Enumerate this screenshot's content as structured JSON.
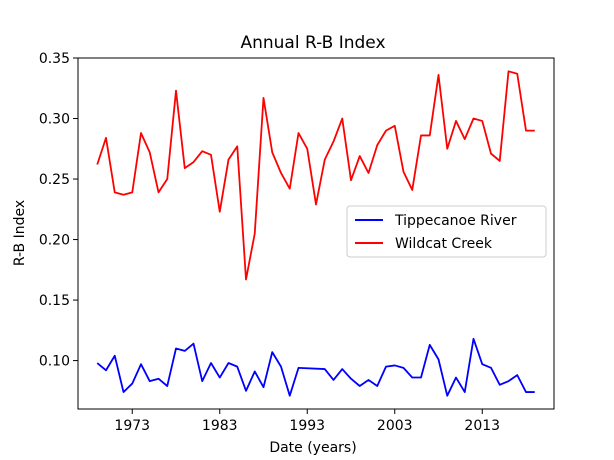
{
  "chart_data": {
    "type": "line",
    "title": "Annual R-B Index",
    "xlabel": "Date (years)",
    "ylabel": "R-B Index",
    "xlim": [
      1966.8,
      2021.2
    ],
    "ylim": [
      0.06,
      0.35
    ],
    "xticks": [
      1973,
      1983,
      1993,
      2003,
      2013
    ],
    "yticks": [
      0.1,
      0.15,
      0.2,
      0.25,
      0.3,
      0.35
    ],
    "ytick_labels": [
      "0.10",
      "0.15",
      "0.20",
      "0.25",
      "0.30",
      "0.35"
    ],
    "grid": false,
    "legend_position": "center-right",
    "series": [
      {
        "name": "Tippecanoe River",
        "color": "#0000ff",
        "x": [
          1969,
          1970,
          1971,
          1972,
          1973,
          1974,
          1975,
          1976,
          1977,
          1978,
          1979,
          1980,
          1981,
          1982,
          1983,
          1984,
          1985,
          1986,
          1987,
          1988,
          1989,
          1990,
          1991,
          1992,
          1995,
          1996,
          1997,
          1998,
          1999,
          2000,
          2001,
          2002,
          2003,
          2004,
          2005,
          2006,
          2007,
          2008,
          2009,
          2010,
          2011,
          2012,
          2013,
          2014,
          2015,
          2016,
          2017,
          2018,
          2019
        ],
        "values": [
          0.098,
          0.092,
          0.104,
          0.074,
          0.081,
          0.097,
          0.083,
          0.085,
          0.079,
          0.11,
          0.108,
          0.114,
          0.083,
          0.098,
          0.086,
          0.098,
          0.095,
          0.075,
          0.091,
          0.078,
          0.107,
          0.095,
          0.071,
          0.094,
          0.093,
          0.084,
          0.093,
          0.085,
          0.079,
          0.084,
          0.079,
          0.095,
          0.096,
          0.094,
          0.086,
          0.086,
          0.113,
          0.101,
          0.071,
          0.086,
          0.074,
          0.118,
          0.097,
          0.094,
          0.08,
          0.083,
          0.088,
          0.074,
          0.074
        ]
      },
      {
        "name": "Wildcat Creek",
        "color": "#ff0000",
        "x": [
          1969,
          1970,
          1971,
          1972,
          1973,
          1974,
          1975,
          1976,
          1977,
          1978,
          1979,
          1980,
          1981,
          1982,
          1983,
          1984,
          1985,
          1986,
          1987,
          1988,
          1989,
          1990,
          1991,
          1992,
          1993,
          1994,
          1995,
          1996,
          1997,
          1998,
          1999,
          2000,
          2001,
          2002,
          2003,
          2004,
          2005,
          2006,
          2007,
          2008,
          2009,
          2010,
          2011,
          2012,
          2013,
          2014,
          2015,
          2016,
          2017,
          2018,
          2019
        ],
        "values": [
          0.262,
          0.284,
          0.239,
          0.237,
          0.239,
          0.288,
          0.272,
          0.239,
          0.25,
          0.323,
          0.259,
          0.264,
          0.273,
          0.27,
          0.223,
          0.266,
          0.277,
          0.167,
          0.205,
          0.317,
          0.272,
          0.255,
          0.242,
          0.288,
          0.275,
          0.229,
          0.266,
          0.281,
          0.3,
          0.249,
          0.269,
          0.255,
          0.278,
          0.29,
          0.294,
          0.256,
          0.241,
          0.286,
          0.286,
          0.336,
          0.275,
          0.298,
          0.283,
          0.3,
          0.298,
          0.271,
          0.265,
          0.339,
          0.337,
          0.29,
          0.29
        ]
      }
    ]
  },
  "colors": {
    "background": "#ffffff",
    "axes": "#000000"
  }
}
